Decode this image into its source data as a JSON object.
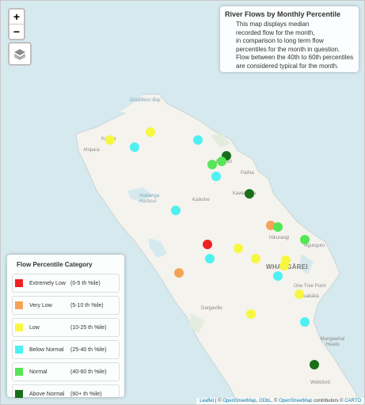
{
  "controls": {
    "zoom_in": "+",
    "zoom_out": "−",
    "layers_icon": "layers-icon"
  },
  "info": {
    "title": "River Flows by Monthly Percentile",
    "lines": [
      "This map displays median",
      "recorded flow for the month,",
      "in comparison to long term flow",
      "percentiles for the month in question.",
      "Flow between the 40th to 60th percentiles",
      "are considered typical for the month."
    ]
  },
  "legend": {
    "title": "Flow Percentile Category",
    "items": [
      {
        "label": "Extremely Low",
        "range": "(0-5 th  %ile)",
        "color": "#ee2222"
      },
      {
        "label": "Very Low",
        "range": "(5-10 th  %ile)",
        "color": "#f4a358"
      },
      {
        "label": "Low",
        "range": "(10-25 th  %ile)",
        "color": "#f7f740"
      },
      {
        "label": "Below Normal",
        "range": "(25-40 th  %ile)",
        "color": "#4ff0f0"
      },
      {
        "label": "Normal",
        "range": "(40-60 th  %ile)",
        "color": "#55e655"
      },
      {
        "label": "Above Normal",
        "range": "(60+ th  %ile)",
        "color": "#1a6e1a"
      }
    ]
  },
  "places": {
    "doubtless_bay": "Doubtless Bay",
    "ahipara": "Ahipara",
    "kaitaia": "Kaitaia",
    "kerikeri": "Kerikeri",
    "paihia": "Paihia",
    "kawakawa": "Kawakawa",
    "kaikohe": "Kaikohe",
    "hokianga": "Hokianga Harbour",
    "hikurangi": "Hikurangi",
    "ngunguru": "Ngunguru",
    "whangarei": "WHANGĀREI",
    "one_tree_point": "One Tree Point",
    "ruakaka": "Ruakākā",
    "dargaville": "Dargaville",
    "mangawhai": "Mangawhai Heads",
    "wellsford": "Wellsford"
  },
  "stations": [
    {
      "category": "Low",
      "color": "#f7f740"
    },
    {
      "category": "Low",
      "color": "#f7f740"
    },
    {
      "category": "Below Normal",
      "color": "#4ff0f0"
    },
    {
      "category": "Below Normal",
      "color": "#4ff0f0"
    },
    {
      "category": "Above Normal",
      "color": "#1a6e1a"
    },
    {
      "category": "Normal",
      "color": "#55e655"
    },
    {
      "category": "Normal",
      "color": "#55e655"
    },
    {
      "category": "Below Normal",
      "color": "#4ff0f0"
    },
    {
      "category": "Above Normal",
      "color": "#1a6e1a"
    },
    {
      "category": "Below Normal",
      "color": "#4ff0f0"
    },
    {
      "category": "Very Low",
      "color": "#f4a358"
    },
    {
      "category": "Normal",
      "color": "#55e655"
    },
    {
      "category": "Normal",
      "color": "#55e655"
    },
    {
      "category": "Extremely Low",
      "color": "#ee2222"
    },
    {
      "category": "Below Normal",
      "color": "#4ff0f0"
    },
    {
      "category": "Low",
      "color": "#f7f740"
    },
    {
      "category": "Low",
      "color": "#f7f740"
    },
    {
      "category": "Low",
      "color": "#f7f740"
    },
    {
      "category": "Low",
      "color": "#f7f740"
    },
    {
      "category": "Very Low",
      "color": "#f4a358"
    },
    {
      "category": "Below Normal",
      "color": "#4ff0f0"
    },
    {
      "category": "Low",
      "color": "#f7f740"
    },
    {
      "category": "Low",
      "color": "#f7f740"
    },
    {
      "category": "Below Normal",
      "color": "#4ff0f0"
    },
    {
      "category": "Above Normal",
      "color": "#1a6e1a"
    }
  ],
  "attribution": {
    "leaflet": "Leaflet",
    "osm": "OpenStreetMap",
    "odbl": "ODbL",
    "osm2": "OpenStreetMap",
    "contributors": "contributors ©",
    "carto": "CARTO",
    "sep1": " | © ",
    "sep2": ", ",
    "sep3": ", © "
  }
}
